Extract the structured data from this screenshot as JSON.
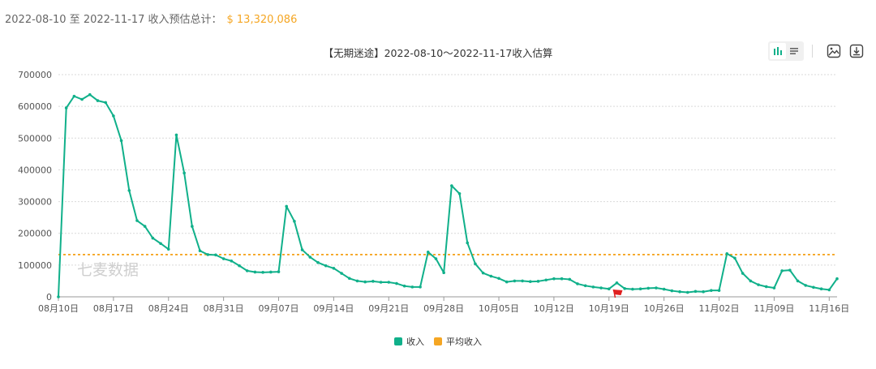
{
  "summary": {
    "date_range": "2022-08-10 至 2022-11-17 收入预估总计：",
    "total": "$ 13,320,086"
  },
  "toolbar": {
    "bar_icon": "bar-chart-icon",
    "list_icon": "list-icon",
    "image_icon": "image-icon",
    "download_icon": "download-icon"
  },
  "watermark": "七麦数据",
  "colors": {
    "income": "#10b08a",
    "average": "#f5a623",
    "marker": "#e02020",
    "total_text": "#f5a623"
  },
  "chart_data": {
    "type": "line",
    "title": "【无期迷途】2022-08-10～2022-11-17收入估算",
    "xlabel": "",
    "ylabel": "",
    "ylim": [
      0,
      700000
    ],
    "yticks": [
      "0",
      "100000",
      "200000",
      "300000",
      "400000",
      "500000",
      "600000",
      "700000"
    ],
    "xticks": [
      {
        "date": "2022-08-10",
        "label": "08月10日"
      },
      {
        "date": "2022-08-17",
        "label": "08月17日"
      },
      {
        "date": "2022-08-24",
        "label": "08月24日"
      },
      {
        "date": "2022-08-31",
        "label": "08月31日"
      },
      {
        "date": "2022-09-07",
        "label": "09月07日"
      },
      {
        "date": "2022-09-14",
        "label": "09月14日"
      },
      {
        "date": "2022-09-21",
        "label": "09月21日"
      },
      {
        "date": "2022-09-28",
        "label": "09月28日"
      },
      {
        "date": "2022-10-05",
        "label": "10月05日"
      },
      {
        "date": "2022-10-12",
        "label": "10月12日"
      },
      {
        "date": "2022-10-19",
        "label": "10月19日"
      },
      {
        "date": "2022-10-26",
        "label": "10月26日"
      },
      {
        "date": "2022-11-02",
        "label": "11月02日"
      },
      {
        "date": "2022-11-09",
        "label": "11月09日"
      },
      {
        "date": "2022-11-16",
        "label": "11月16日"
      }
    ],
    "grid": true,
    "legend_position": "bottom",
    "x_start": "2022-08-10",
    "series": [
      {
        "name": "收入",
        "values": [
          0,
          595000,
          632000,
          622000,
          637000,
          618000,
          612000,
          570000,
          492000,
          335000,
          240000,
          222000,
          185000,
          168000,
          150000,
          510000,
          390000,
          222000,
          145000,
          133000,
          132000,
          120000,
          113000,
          98000,
          82000,
          78000,
          77000,
          78000,
          79000,
          285000,
          238000,
          148000,
          125000,
          108000,
          98000,
          90000,
          74000,
          58000,
          50000,
          47000,
          49000,
          46000,
          46000,
          42000,
          34000,
          31000,
          31000,
          141000,
          120000,
          76000,
          350000,
          325000,
          170000,
          104000,
          75000,
          65000,
          58000,
          47000,
          50000,
          50000,
          48000,
          49000,
          53000,
          57000,
          57000,
          55000,
          41000,
          35000,
          31000,
          28000,
          25000,
          44000,
          26000,
          24000,
          25000,
          27000,
          28000,
          24000,
          19000,
          16000,
          14000,
          17000,
          16000,
          20000,
          20000,
          136000,
          122000,
          74000,
          50000,
          38000,
          32000,
          28000,
          82000,
          84000,
          50000,
          36000,
          30000,
          25000,
          22000,
          57000
        ]
      },
      {
        "name": "平均收入",
        "values": [
          133000
        ]
      }
    ],
    "marker_date": "2022-10-20"
  }
}
